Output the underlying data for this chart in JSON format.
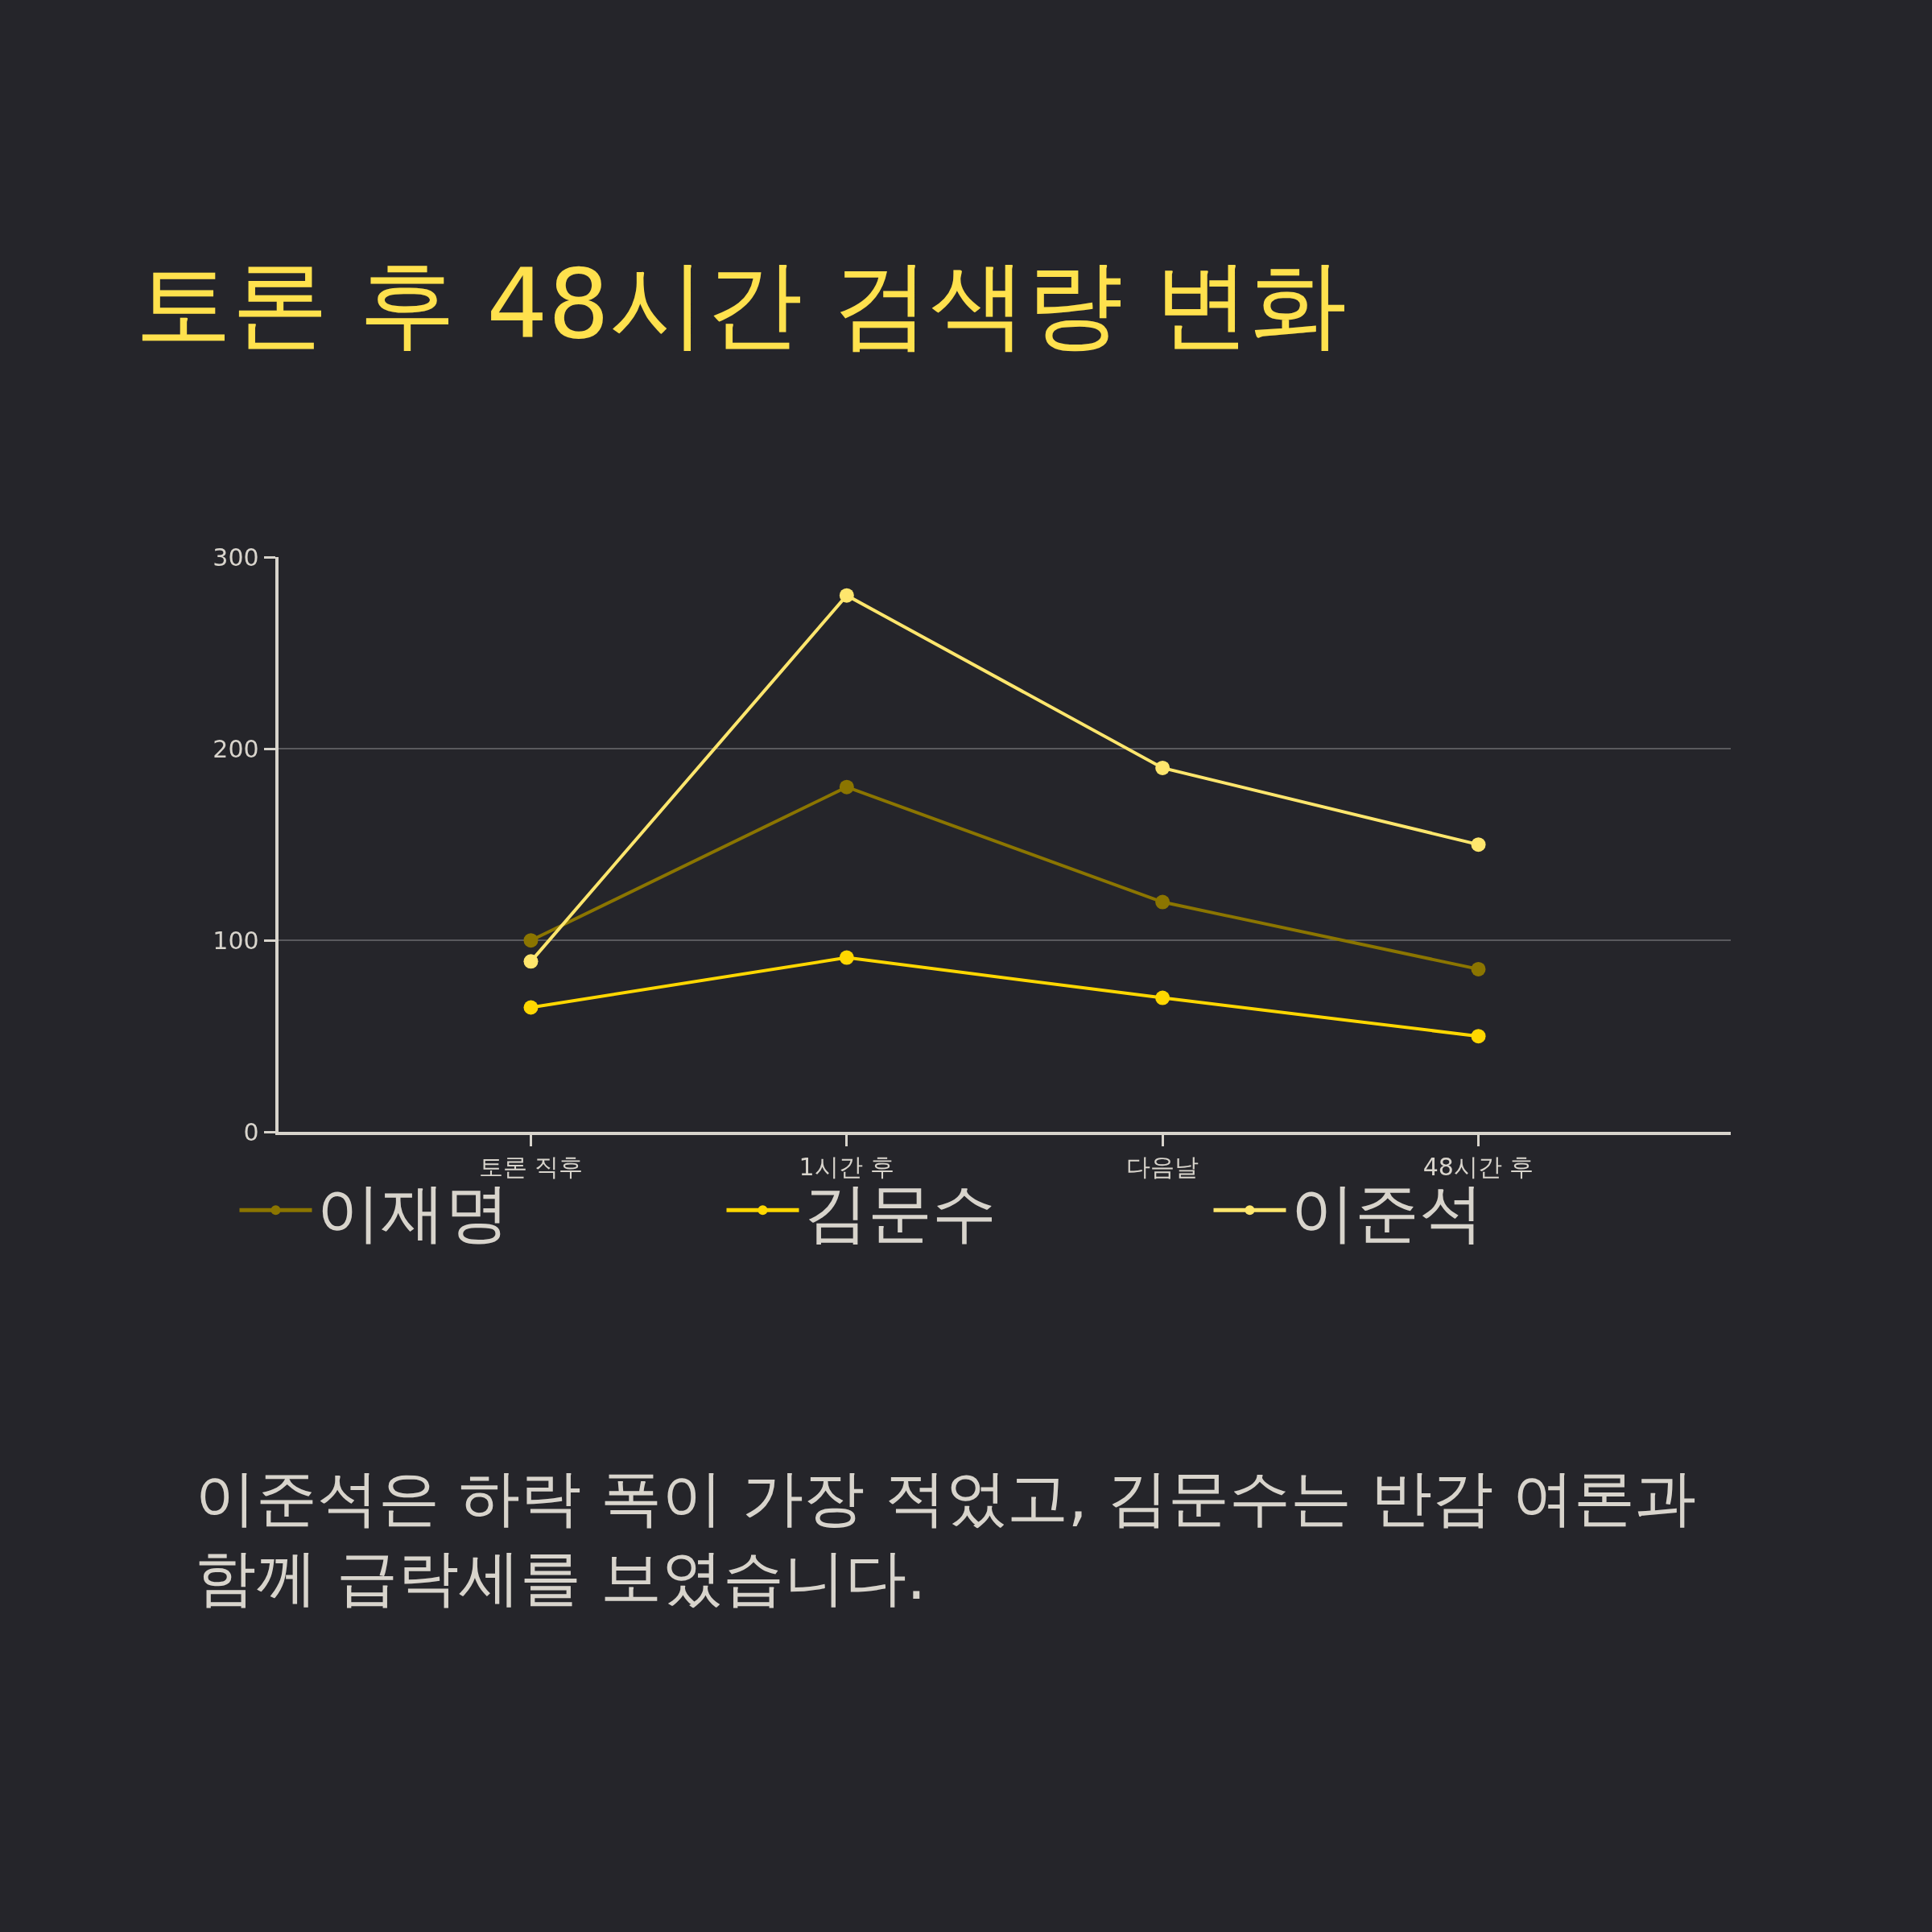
{
  "chart_data": {
    "type": "line",
    "title": "토론 후 48시간 검색량 변화",
    "categories": [
      "토론 직후",
      "1시간 후",
      "다음날",
      "48시간 후"
    ],
    "series": [
      {
        "name": "이재명",
        "color": "#8b7500",
        "values": [
          100,
          180,
          120,
          85
        ]
      },
      {
        "name": "김문수",
        "color": "#ffd700",
        "values": [
          65,
          91,
          70,
          50
        ]
      },
      {
        "name": "이준석",
        "color": "#ffe66d",
        "values": [
          89,
          280,
          190,
          150
        ]
      }
    ],
    "ylim": [
      0,
      300
    ],
    "yticks": [
      0,
      100,
      200,
      300
    ],
    "grid": "y",
    "legend": "bottom",
    "marker": "circle",
    "line_style": "solid",
    "annotations": [
      "이준석은 하락 폭이 가장 적었고, 김문수는 반감 여론과 함께 급락세를 보였습니다."
    ]
  }
}
